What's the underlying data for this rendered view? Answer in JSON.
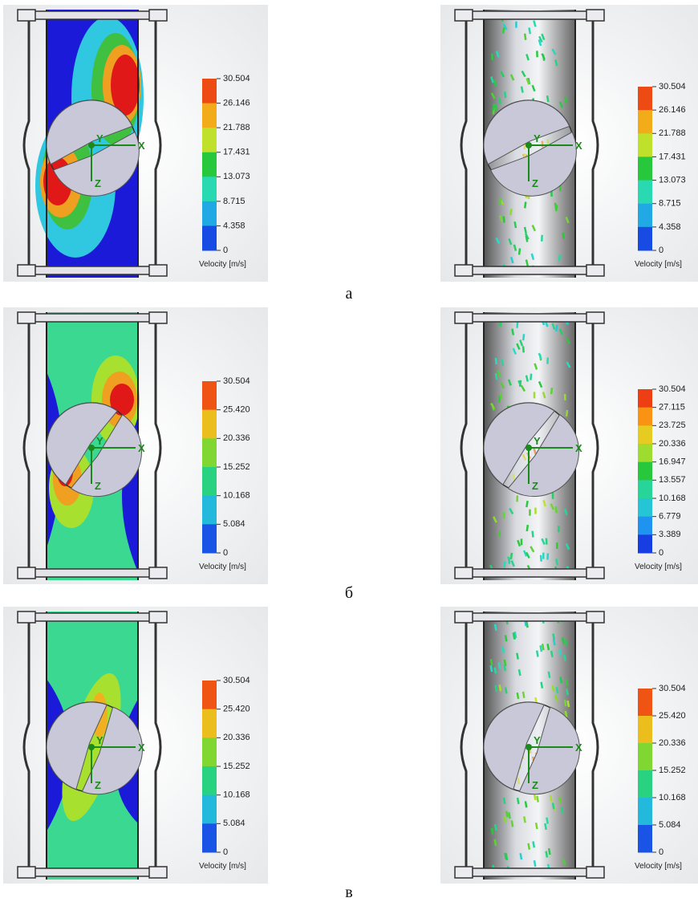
{
  "rows": [
    {
      "caption": "а",
      "panels": [
        {
          "legend_title": "Velocity [m/s]",
          "ticks": [
            "30.504",
            "26.146",
            "21.788",
            "17.431",
            "13.073",
            "8.715",
            "4.358",
            "0"
          ],
          "triad": [
            "X",
            "Y",
            "Z"
          ]
        },
        {
          "legend_title": "Velocity [m/s]",
          "ticks": [
            "30.504",
            "26.146",
            "21.788",
            "17.431",
            "13.073",
            "8.715",
            "4.358",
            "0"
          ],
          "triad": [
            "X",
            "Y",
            "Z"
          ]
        }
      ]
    },
    {
      "caption": "б",
      "panels": [
        {
          "legend_title": "Velocity [m/s]",
          "ticks": [
            "30.504",
            "25.420",
            "20.336",
            "15.252",
            "10.168",
            "5.084",
            "0"
          ],
          "triad": [
            "X",
            "Y",
            "Z"
          ]
        },
        {
          "legend_title": "Velocity [m/s]",
          "ticks": [
            "30.504",
            "27.115",
            "23.725",
            "20.336",
            "16.947",
            "13.557",
            "10.168",
            "6.779",
            "3.389",
            "0"
          ],
          "triad": [
            "X",
            "Y",
            "Z"
          ]
        }
      ]
    },
    {
      "caption": "в",
      "panels": [
        {
          "legend_title": "Velocity [m/s]",
          "ticks": [
            "30.504",
            "25.420",
            "20.336",
            "15.252",
            "10.168",
            "5.084",
            "0"
          ],
          "triad": [
            "X",
            "Y",
            "Z"
          ]
        },
        {
          "legend_title": "Velocity [m/s]",
          "ticks": [
            "30.504",
            "25.420",
            "20.336",
            "15.252",
            "10.168",
            "5.084",
            "0"
          ],
          "triad": [
            "X",
            "Y",
            "Z"
          ]
        }
      ]
    }
  ]
}
